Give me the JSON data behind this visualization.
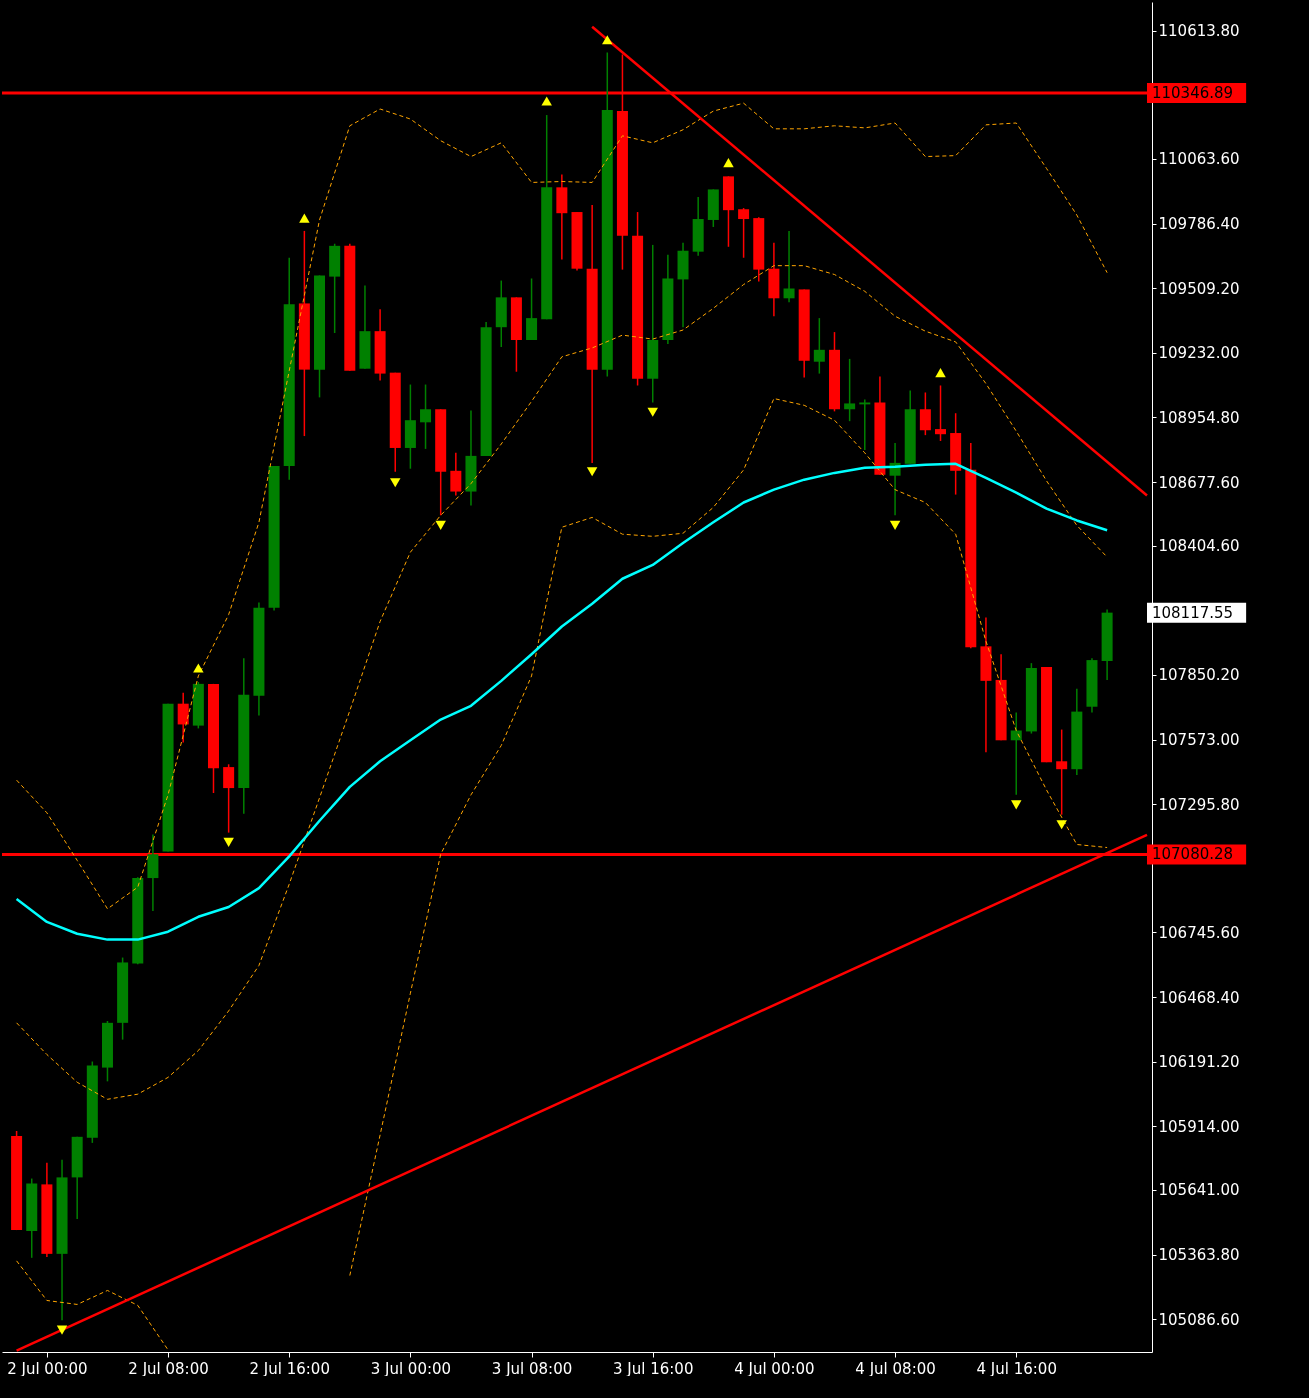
{
  "chart_data": {
    "type": "candlestick",
    "x": [
      "--07-01T22:00",
      "--07-01T23:00",
      "--07-02T00:00",
      "--07-02T01:00",
      "--07-02T02:00",
      "--07-02T03:00",
      "--07-02T04:00",
      "--07-02T05:00",
      "--07-02T06:00",
      "--07-02T07:00",
      "--07-02T08:00",
      "--07-02T09:00",
      "--07-02T10:00",
      "--07-02T11:00",
      "--07-02T12:00",
      "--07-02T13:00",
      "--07-02T14:00",
      "--07-02T15:00",
      "--07-02T16:00",
      "--07-02T17:00",
      "--07-02T18:00",
      "--07-02T19:00",
      "--07-02T20:00",
      "--07-02T21:00",
      "--07-02T22:00",
      "--07-02T23:00",
      "--07-03T00:00",
      "--07-03T01:00",
      "--07-03T02:00",
      "--07-03T03:00",
      "--07-03T04:00",
      "--07-03T05:00",
      "--07-03T06:00",
      "--07-03T07:00",
      "--07-03T08:00",
      "--07-03T09:00",
      "--07-03T10:00",
      "--07-03T11:00",
      "--07-03T12:00",
      "--07-03T13:00",
      "--07-03T14:00",
      "--07-03T15:00",
      "--07-03T16:00",
      "--07-03T17:00",
      "--07-03T18:00",
      "--07-03T19:00",
      "--07-03T20:00",
      "--07-03T21:00",
      "--07-03T22:00",
      "--07-03T23:00",
      "--07-04T00:00",
      "--07-04T01:00",
      "--07-04T02:00",
      "--07-04T03:00",
      "--07-04T04:00",
      "--07-04T05:00",
      "--07-04T06:00",
      "--07-04T07:00",
      "--07-04T08:00",
      "--07-04T09:00",
      "--07-04T10:00",
      "--07-04T11:00",
      "--07-04T12:00",
      "--07-04T13:00",
      "--07-04T14:00",
      "--07-04T15:00",
      "--07-04T16:00",
      "--07-04T17:00",
      "--07-04T18:00",
      "--07-04T19:00",
      "--07-04T20:00",
      "--07-04T21:00",
      "--07-04T22:00"
    ],
    "ohlc": [
      [
        105873,
        105894,
        105469,
        105469
      ],
      [
        105465,
        105690,
        105350,
        105669
      ],
      [
        105665,
        105758,
        105354,
        105367
      ],
      [
        105367,
        105771,
        105082,
        105695
      ],
      [
        105695,
        105869,
        105516,
        105869
      ],
      [
        105865,
        106192,
        105843,
        106175
      ],
      [
        106166,
        106366,
        106107,
        106358
      ],
      [
        106358,
        106638,
        106286,
        106617
      ],
      [
        106613,
        106983,
        106609,
        106979
      ],
      [
        106979,
        107166,
        106838,
        107081
      ],
      [
        107093,
        107727,
        107093,
        107727
      ],
      [
        107727,
        107774,
        107561,
        107638
      ],
      [
        107633,
        107820,
        107621,
        107812
      ],
      [
        107812,
        107812,
        107344,
        107450
      ],
      [
        107455,
        107467,
        107174,
        107365
      ],
      [
        107365,
        107922,
        107255,
        107765
      ],
      [
        107761,
        108161,
        107676,
        108139
      ],
      [
        108139,
        108747,
        108127,
        108747
      ],
      [
        108747,
        109640,
        108688,
        109440
      ],
      [
        109444,
        109755,
        108875,
        109160
      ],
      [
        109160,
        109564,
        109041,
        109564
      ],
      [
        109559,
        109700,
        109317,
        109691
      ],
      [
        109691,
        109700,
        109155,
        109155
      ],
      [
        109164,
        109521,
        109164,
        109325
      ],
      [
        109325,
        109419,
        109113,
        109143
      ],
      [
        109147,
        109147,
        108722,
        108824
      ],
      [
        108824,
        109096,
        108735,
        108943
      ],
      [
        108934,
        109096,
        108820,
        108990
      ],
      [
        108990,
        108990,
        108535,
        108722
      ],
      [
        108726,
        108803,
        108620,
        108637
      ],
      [
        108637,
        108985,
        108577,
        108790
      ],
      [
        108790,
        109364,
        108790,
        109342
      ],
      [
        109342,
        109542,
        109257,
        109470
      ],
      [
        109470,
        109470,
        109151,
        109287
      ],
      [
        109287,
        109551,
        109287,
        109381
      ],
      [
        109376,
        110252,
        109376,
        109942
      ],
      [
        109942,
        109997,
        109632,
        109831
      ],
      [
        109836,
        109836,
        109585,
        109593
      ],
      [
        109593,
        109866,
        108760,
        109160
      ],
      [
        109160,
        110520,
        109130,
        110274
      ],
      [
        110269,
        110512,
        109589,
        109734
      ],
      [
        109734,
        109836,
        109092,
        109121
      ],
      [
        109121,
        109695,
        109019,
        109287
      ],
      [
        109287,
        109653,
        109270,
        109551
      ],
      [
        109547,
        109704,
        109342,
        109670
      ],
      [
        109666,
        109900,
        109649,
        109806
      ],
      [
        109802,
        109933,
        109772,
        109933
      ],
      [
        109989,
        109989,
        109687,
        109844
      ],
      [
        109848,
        109853,
        109640,
        109806
      ],
      [
        109810,
        109814,
        109538,
        109589
      ],
      [
        109593,
        109704,
        109389,
        109466
      ],
      [
        109466,
        109755,
        109449,
        109508
      ],
      [
        109504,
        109504,
        109126,
        109198
      ],
      [
        109194,
        109381,
        109143,
        109245
      ],
      [
        109245,
        109321,
        108981,
        108990
      ],
      [
        108990,
        109206,
        108939,
        109015
      ],
      [
        109011,
        109032,
        108815,
        109019
      ],
      [
        109019,
        109130,
        108709,
        108709
      ],
      [
        108705,
        108845,
        108535,
        108760
      ],
      [
        108756,
        109070,
        108756,
        108990
      ],
      [
        108990,
        109062,
        108879,
        108900
      ],
      [
        108905,
        109092,
        108854,
        108883
      ],
      [
        108888,
        108973,
        108624,
        108726
      ],
      [
        108730,
        108845,
        107965,
        107969
      ],
      [
        107973,
        108097,
        107519,
        107825
      ],
      [
        107829,
        107939,
        107570,
        107570
      ],
      [
        107570,
        107689,
        107336,
        107612
      ],
      [
        107608,
        107901,
        107599,
        107880
      ],
      [
        107884,
        107884,
        107476,
        107476
      ],
      [
        107480,
        107616,
        107251,
        107446
      ],
      [
        107446,
        107791,
        107421,
        107693
      ],
      [
        107714,
        107922,
        107689,
        107914
      ],
      [
        107910,
        108131,
        107829,
        108117.55
      ]
    ],
    "colors": [
      "#ff0000",
      "#008000",
      "#ff0000",
      "#008000",
      "#008000",
      "#008000",
      "#008000",
      "#008000",
      "#008000",
      "#008000",
      "#008000",
      "#ff0000",
      "#008000",
      "#ff0000",
      "#ff0000",
      "#008000",
      "#008000",
      "#008000",
      "#008000",
      "#ff0000",
      "#008000",
      "#008000",
      "#ff0000",
      "#008000",
      "#ff0000",
      "#ff0000",
      "#008000",
      "#008000",
      "#ff0000",
      "#ff0000",
      "#008000",
      "#008000",
      "#008000",
      "#ff0000",
      "#008000",
      "#008000",
      "#ff0000",
      "#ff0000",
      "#ff0000",
      "#008000",
      "#ff0000",
      "#ff0000",
      "#008000",
      "#008000",
      "#008000",
      "#008000",
      "#008000",
      "#ff0000",
      "#ff0000",
      "#ff0000",
      "#ff0000",
      "#008000",
      "#ff0000",
      "#008000",
      "#ff0000",
      "#008000",
      "#008000",
      "#ff0000",
      "#008000",
      "#008000",
      "#ff0000",
      "#ff0000",
      "#ff0000",
      "#ff0000",
      "#ff0000",
      "#ff0000",
      "#008000",
      "#008000",
      "#ff0000",
      "#ff0000",
      "#008000",
      "#008000",
      "#008000"
    ],
    "series": [
      {
        "type": "line",
        "color": "#ffa500",
        "line_style": "dashed",
        "x": [
          "--07-01T22:00",
          "--07-02T00:00",
          "--07-02T02:00",
          "--07-02T04:00",
          "--07-02T06:00",
          "--07-02T08:00",
          "--07-02T10:00",
          "--07-02T12:00",
          "--07-02T14:00",
          "--07-02T16:00",
          "--07-02T18:00",
          "--07-02T20:00",
          "--07-02T22:00",
          "--07-03T00:00",
          "--07-03T02:00",
          "--07-03T04:00",
          "--07-03T06:00",
          "--07-03T08:00",
          "--07-03T10:00",
          "--07-03T12:00",
          "--07-03T14:00",
          "--07-03T16:00",
          "--07-03T18:00",
          "--07-03T20:00",
          "--07-03T22:00",
          "--07-04T00:00",
          "--07-04T02:00",
          "--07-04T04:00",
          "--07-04T06:00",
          "--07-04T08:00",
          "--07-04T10:00",
          "--07-04T12:00",
          "--07-04T14:00",
          "--07-04T16:00",
          "--07-04T18:00",
          "--07-04T20:00",
          "--07-04T22:00"
        ],
        "values": [
          107399,
          107259,
          107055,
          106847,
          106940,
          107336,
          107846,
          108109,
          108505,
          109155,
          109802,
          110206,
          110278,
          110235,
          110142,
          110074,
          110133,
          109963,
          109967,
          109963,
          110163,
          110133,
          110189,
          110269,
          110303,
          110193,
          110193,
          110206,
          110197,
          110218,
          110074,
          110078,
          110210,
          110218,
          110023,
          109823,
          109576
        ]
      },
      {
        "type": "line",
        "color": "#ffa500",
        "line_style": "dashed",
        "x": [
          "--07-01T22:00",
          "--07-02T00:00",
          "--07-02T02:00",
          "--07-02T04:00",
          "--07-02T06:00",
          "--07-02T08:00",
          "--07-02T10:00",
          "--07-02T12:00",
          "--07-02T14:00",
          "--07-02T16:00",
          "--07-02T18:00",
          "--07-02T20:00",
          "--07-02T22:00",
          "--07-03T00:00",
          "--07-03T02:00",
          "--07-03T04:00",
          "--07-03T06:00",
          "--07-03T08:00",
          "--07-03T10:00",
          "--07-03T12:00",
          "--07-03T14:00",
          "--07-03T16:00",
          "--07-03T18:00",
          "--07-03T20:00",
          "--07-03T22:00",
          "--07-04T00:00",
          "--07-04T02:00",
          "--07-04T04:00",
          "--07-04T06:00",
          "--07-04T08:00",
          "--07-04T10:00",
          "--07-04T12:00",
          "--07-04T14:00",
          "--07-04T16:00",
          "--07-04T18:00",
          "--07-04T20:00",
          "--07-04T22:00"
        ],
        "values": [
          106358,
          106222,
          106103,
          106030,
          106052,
          106124,
          106239,
          106409,
          106604,
          106953,
          107323,
          107697,
          108080,
          108377,
          108535,
          108671,
          108841,
          109024,
          109215,
          109253,
          109308,
          109291,
          109330,
          109423,
          109525,
          109606,
          109606,
          109568,
          109496,
          109389,
          109325,
          109279,
          109100,
          108896,
          108683,
          108492,
          108356
        ]
      },
      {
        "type": "line",
        "color": "#ffa500",
        "line_style": "dashed",
        "x": [
          "--07-01T22:00",
          "--07-02T00:00",
          "--07-02T02:00",
          "--07-02T04:00",
          "--07-02T06:00",
          "--07-02T08:00",
          "--07-02T10:00",
          "--07-02T12:00",
          "--07-02T14:00",
          "--07-02T16:00",
          "--07-02T18:00",
          "--07-02T20:00",
          "--07-02T22:00",
          "--07-03T00:00",
          "--07-03T02:00",
          "--07-03T04:00",
          "--07-03T06:00",
          "--07-03T08:00",
          "--07-03T10:00",
          "--07-03T12:00",
          "--07-03T14:00",
          "--07-03T16:00",
          "--07-03T18:00",
          "--07-03T20:00",
          "--07-03T22:00",
          "--07-04T00:00",
          "--07-04T02:00",
          "--07-04T04:00",
          "--07-04T06:00",
          "--07-04T08:00",
          "--07-04T10:00",
          "--07-04T12:00",
          "--07-04T14:00",
          "--07-04T16:00",
          "--07-04T18:00",
          "--07-04T20:00",
          "--07-04T22:00"
        ],
        "values": [
          105337,
          105167,
          105150,
          105210,
          105146,
          104955,
          null,
          null,
          null,
          null,
          null,
          105274,
          105877,
          106485,
          107081,
          107336,
          107548,
          107846,
          108484,
          108526,
          108454,
          108445,
          108458,
          108569,
          108730,
          109036,
          109007,
          108943,
          108803,
          108645,
          108590,
          108454,
          107995,
          107612,
          107357,
          107123,
          107110
        ]
      },
      {
        "type": "line",
        "color": "#00ffff",
        "line_style": "solid",
        "x": [
          "--07-01T22:00",
          "--07-02T00:00",
          "--07-02T02:00",
          "--07-02T04:00",
          "--07-02T06:00",
          "--07-02T08:00",
          "--07-02T10:00",
          "--07-02T12:00",
          "--07-02T14:00",
          "--07-02T16:00",
          "--07-02T18:00",
          "--07-02T20:00",
          "--07-02T22:00",
          "--07-03T00:00",
          "--07-03T02:00",
          "--07-03T04:00",
          "--07-03T06:00",
          "--07-03T08:00",
          "--07-03T10:00",
          "--07-03T12:00",
          "--07-03T14:00",
          "--07-03T16:00",
          "--07-03T18:00",
          "--07-03T20:00",
          "--07-03T22:00",
          "--07-04T00:00",
          "--07-04T02:00",
          "--07-04T04:00",
          "--07-04T06:00",
          "--07-04T08:00",
          "--07-04T10:00",
          "--07-04T12:00",
          "--07-04T14:00",
          "--07-04T16:00",
          "--07-04T18:00",
          "--07-04T20:00",
          "--07-04T22:00"
        ],
        "values": [
          106889,
          106791,
          106740,
          106715,
          106715,
          106749,
          106813,
          106855,
          106936,
          107072,
          107225,
          107370,
          107480,
          107570,
          107659,
          107718,
          107825,
          107939,
          108058,
          108156,
          108263,
          108322,
          108416,
          108505,
          108590,
          108645,
          108688,
          108717,
          108739,
          108743,
          108752,
          108756,
          108696,
          108632,
          108564,
          108513,
          108471
        ]
      },
      {
        "type": "line",
        "color": "#ff0000",
        "line_style": "solid",
        "x": [
          "--07-03T12:00",
          "--07-05T00:38"
        ],
        "values": [
          110631,
          108620
        ]
      },
      {
        "type": "line",
        "color": "#ff0000",
        "line_style": "solid",
        "x": [
          "--07-01T22:00",
          "--07-05T00:38"
        ],
        "values": [
          104952,
          107164
        ]
      },
      {
        "type": "scatter",
        "color": "#ffff00",
        "marker": "triangle",
        "x": [
          "--07-02T10:00",
          "--07-02T17:00",
          "--07-03T09:00",
          "--07-03T13:00",
          "--07-03T21:00",
          "--07-04T11:00"
        ],
        "values": [
          107880,
          109810,
          110312,
          110575,
          110048,
          109147
        ]
      },
      {
        "type": "scatter",
        "color": "#ffff00",
        "marker": "triangle-down",
        "x": [
          "--07-02T01:00",
          "--07-02T12:00",
          "--07-02T23:00",
          "--07-03T02:00",
          "--07-03T12:00",
          "--07-03T16:00",
          "--07-04T08:00",
          "--07-04T16:00",
          "--07-04T19:00"
        ],
        "values": [
          105040,
          107132,
          108675,
          108492,
          108722,
          108977,
          108492,
          107293,
          107208
        ]
      }
    ],
    "xlim": [
      "--07-01T21:22",
      "--07-05T00:38"
    ],
    "xticks": [
      {
        "value": "--07-02T00:00",
        "label": "2 Jul 00:00"
      },
      {
        "value": "--07-02T08:00",
        "label": "2 Jul 08:00"
      },
      {
        "value": "--07-02T16:00",
        "label": "2 Jul 16:00"
      },
      {
        "value": "--07-03T00:00",
        "label": "3 Jul 00:00"
      },
      {
        "value": "--07-03T08:00",
        "label": "3 Jul 08:00"
      },
      {
        "value": "--07-03T16:00",
        "label": "3 Jul 16:00"
      },
      {
        "value": "--07-04T00:00",
        "label": "4 Jul 00:00"
      },
      {
        "value": "--07-04T08:00",
        "label": "4 Jul 08:00"
      },
      {
        "value": "--07-04T16:00",
        "label": "4 Jul 16:00"
      }
    ],
    "ylim": [
      104946,
      110737
    ],
    "yticks": [
      {
        "value": 110613.8,
        "label": "110613.80"
      },
      {
        "value": 110063.6,
        "label": "110063.60"
      },
      {
        "value": 109786.4,
        "label": "109786.40"
      },
      {
        "value": 109509.2,
        "label": "109509.20"
      },
      {
        "value": 109232,
        "label": "109232.00"
      },
      {
        "value": 108954.8,
        "label": "108954.80"
      },
      {
        "value": 108677.6,
        "label": "108677.60"
      },
      {
        "value": 108404.6,
        "label": "108404.60"
      },
      {
        "value": 107850.2,
        "label": "107850.20"
      },
      {
        "value": 107573,
        "label": "107573.00"
      },
      {
        "value": 107295.8,
        "label": "107295.80"
      },
      {
        "value": 106745.6,
        "label": "106745.60"
      },
      {
        "value": 106468.4,
        "label": "106468.40"
      },
      {
        "value": 106191.2,
        "label": "106191.20"
      },
      {
        "value": 105914,
        "label": "105914.00"
      },
      {
        "value": 105641,
        "label": "105641.00"
      },
      {
        "value": 105363.8,
        "label": "105363.80"
      },
      {
        "value": 105086.6,
        "label": "105086.60"
      }
    ],
    "ref_lines": [
      {
        "axis": "y",
        "value": 110346.89,
        "label": "110346.89",
        "color": "#ff0000"
      },
      {
        "axis": "y",
        "value": 107080.28,
        "label": "107080.28",
        "color": "#ff0000"
      }
    ],
    "annotations": [
      "108117.55"
    ]
  }
}
